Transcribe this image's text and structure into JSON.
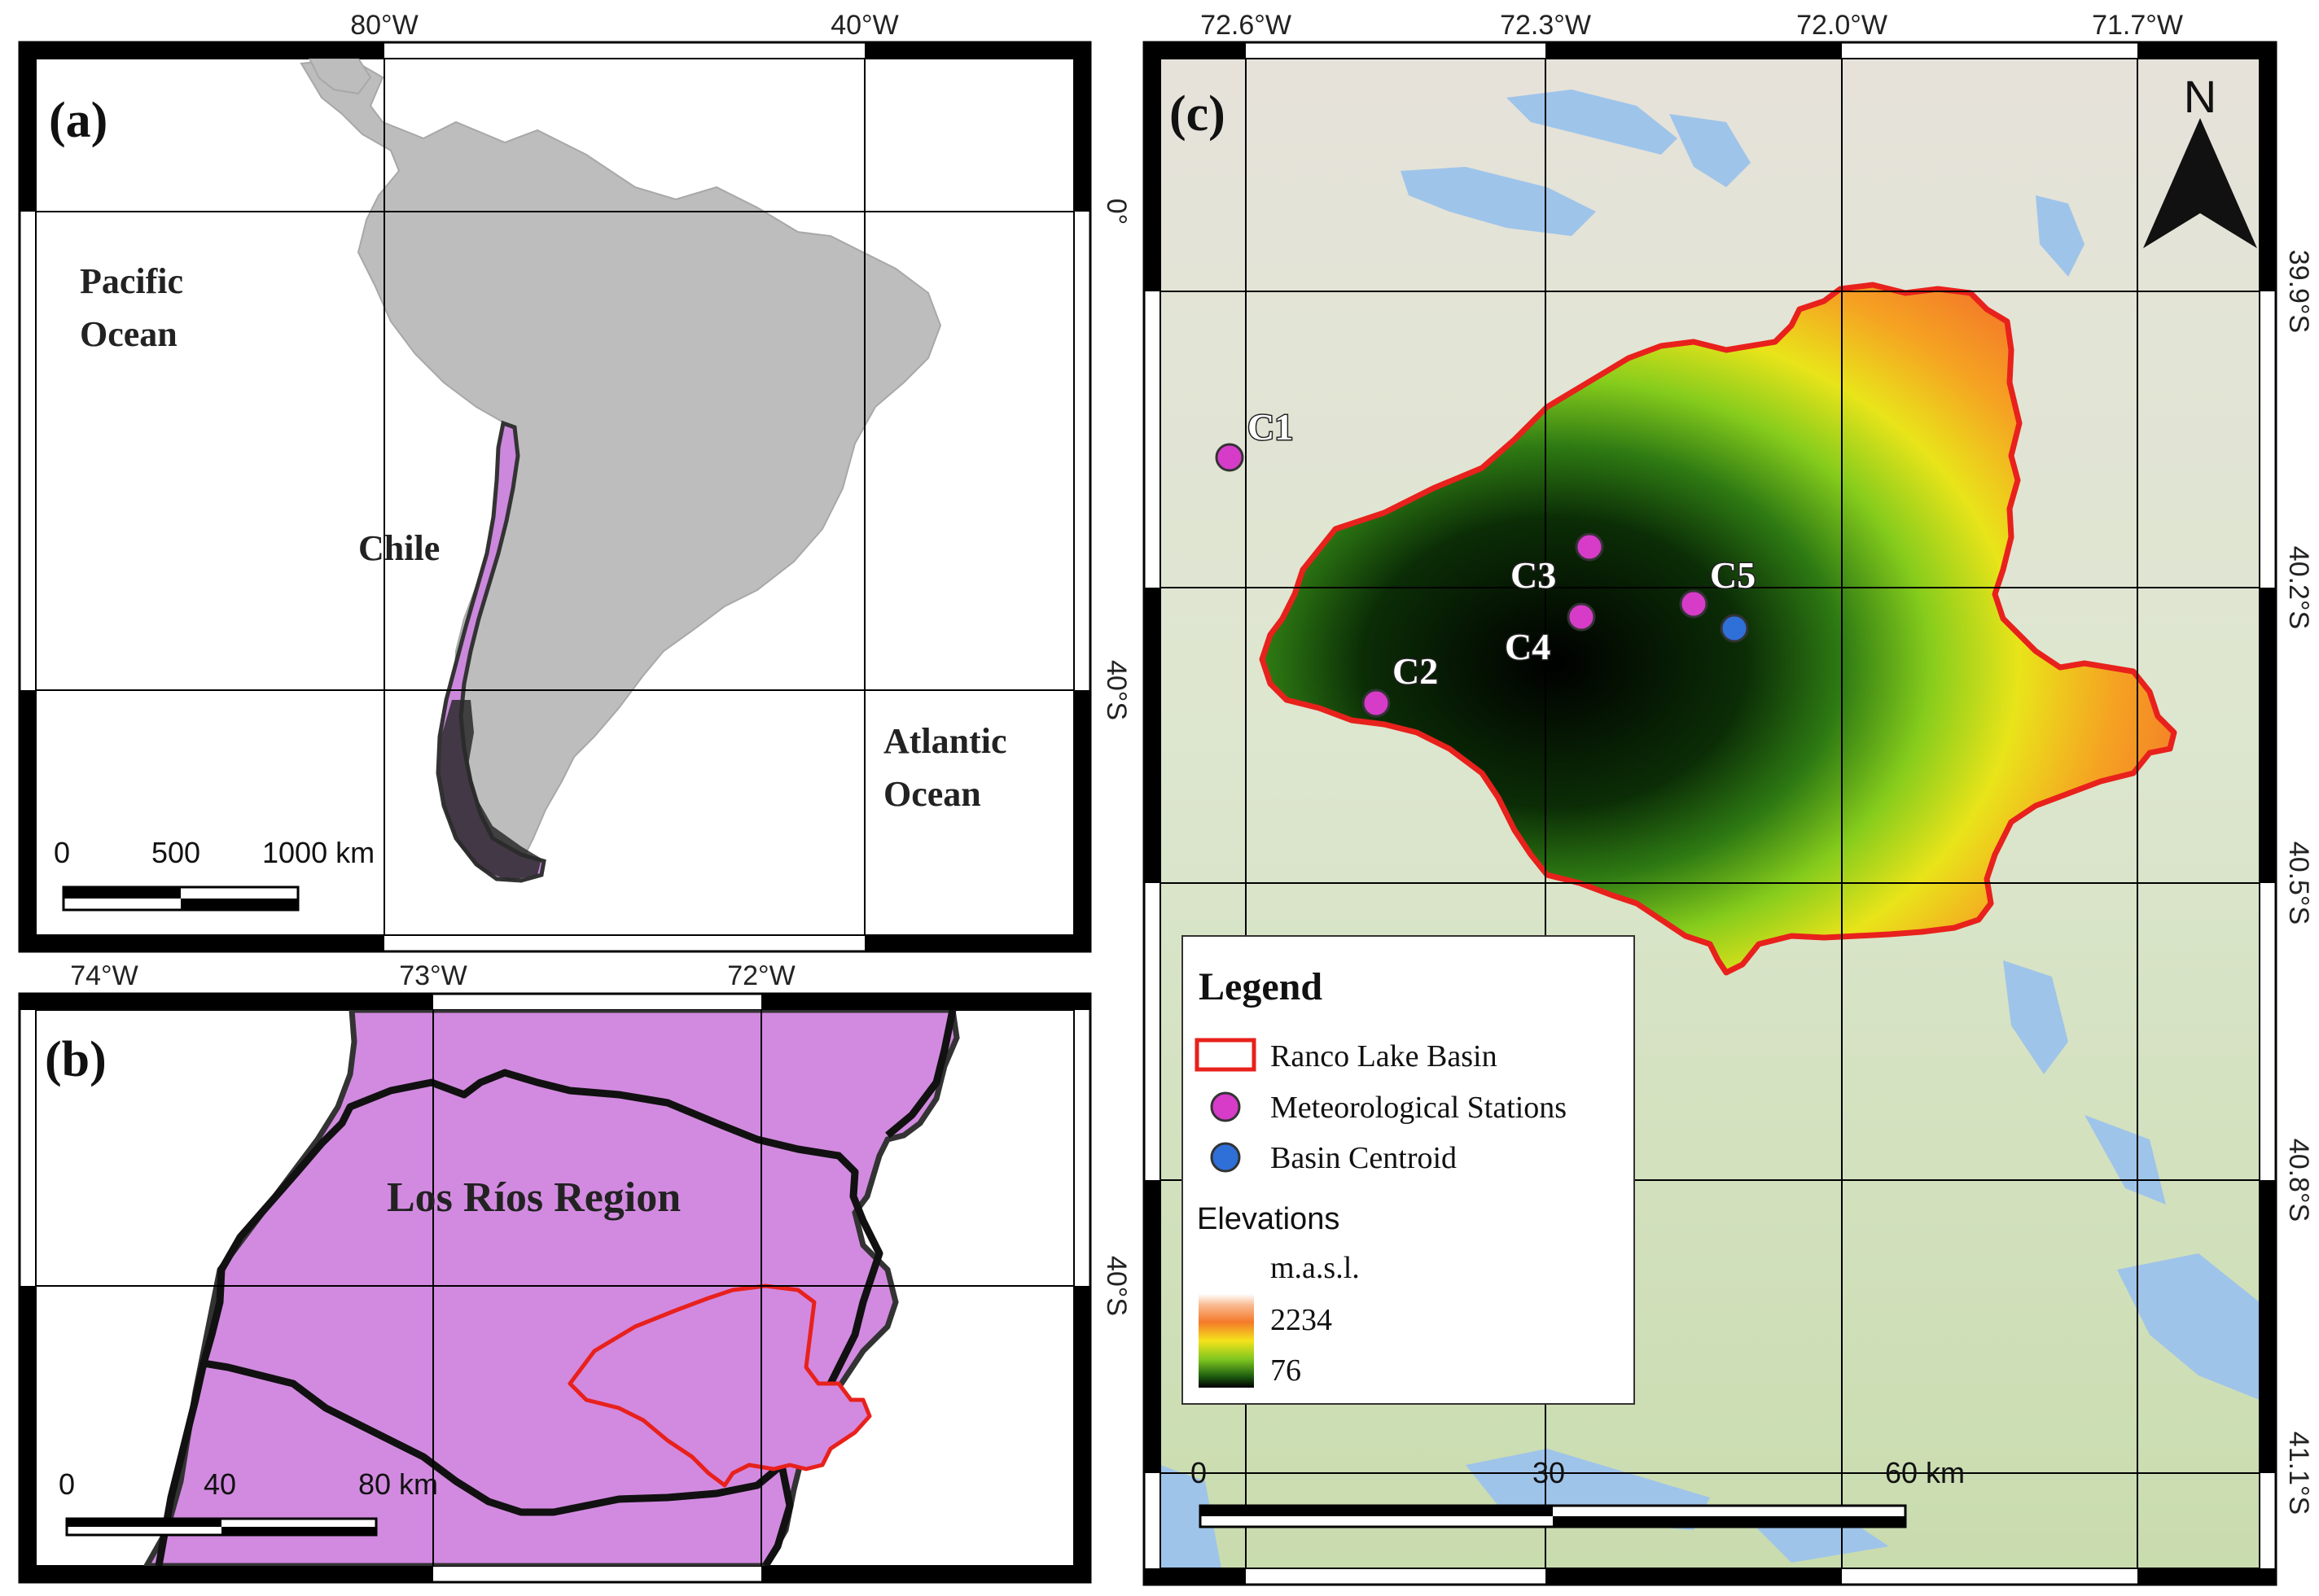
{
  "panels": {
    "a": {
      "label": "(a)",
      "lon_ticks": [
        "80°W",
        "40°W"
      ],
      "lat_ticks": [
        "0°",
        "40°S"
      ],
      "pacific": [
        "Pacific",
        "Ocean"
      ],
      "atlantic": [
        "Atlantic",
        "Ocean"
      ],
      "country": "Chile",
      "scale": {
        "zero": "0",
        "mid": "500",
        "end": "1000 km"
      }
    },
    "b": {
      "label": "(b)",
      "lon_ticks": [
        "74°W",
        "73°W",
        "72°W"
      ],
      "lat_ticks": [
        "40°S"
      ],
      "region": "Los Ríos Region",
      "scale": {
        "zero": "0",
        "mid": "40",
        "end": "80 km"
      }
    },
    "c": {
      "label": "(c)",
      "lon_ticks": [
        "72.6°W",
        "72.3°W",
        "72.0°W",
        "71.7°W"
      ],
      "lat_ticks": [
        "39.9°S",
        "40.2°S",
        "40.5°S",
        "40.8°S",
        "41.1°S"
      ],
      "north": "N",
      "stations": [
        {
          "id": "C1",
          "type": "meteorological"
        },
        {
          "id": "C2",
          "type": "meteorological"
        },
        {
          "id": "C3",
          "type": "meteorological"
        },
        {
          "id": "C4",
          "type": "meteorological"
        },
        {
          "id": "C5",
          "type": "meteorological"
        }
      ],
      "scale": {
        "zero": "0",
        "mid": "30",
        "end": "60 km"
      },
      "legend": {
        "title": "Legend",
        "basin": "Ranco Lake Basin",
        "stations": "Meteorological Stations",
        "centroid": "Basin Centroid",
        "elev_title": "Elevations",
        "elev_unit": "m.a.s.l.",
        "elev_max": "2234",
        "elev_min": "76"
      }
    }
  },
  "colors": {
    "land_gray": "#bdbdbd",
    "chile_purple": "#cc88dd",
    "region_purple": "#d28ae0",
    "basin_red": "#e8211c",
    "station_magenta": "#d63cc8",
    "centroid_blue": "#2f6fd8",
    "water_blue": "#9fc4ea"
  }
}
